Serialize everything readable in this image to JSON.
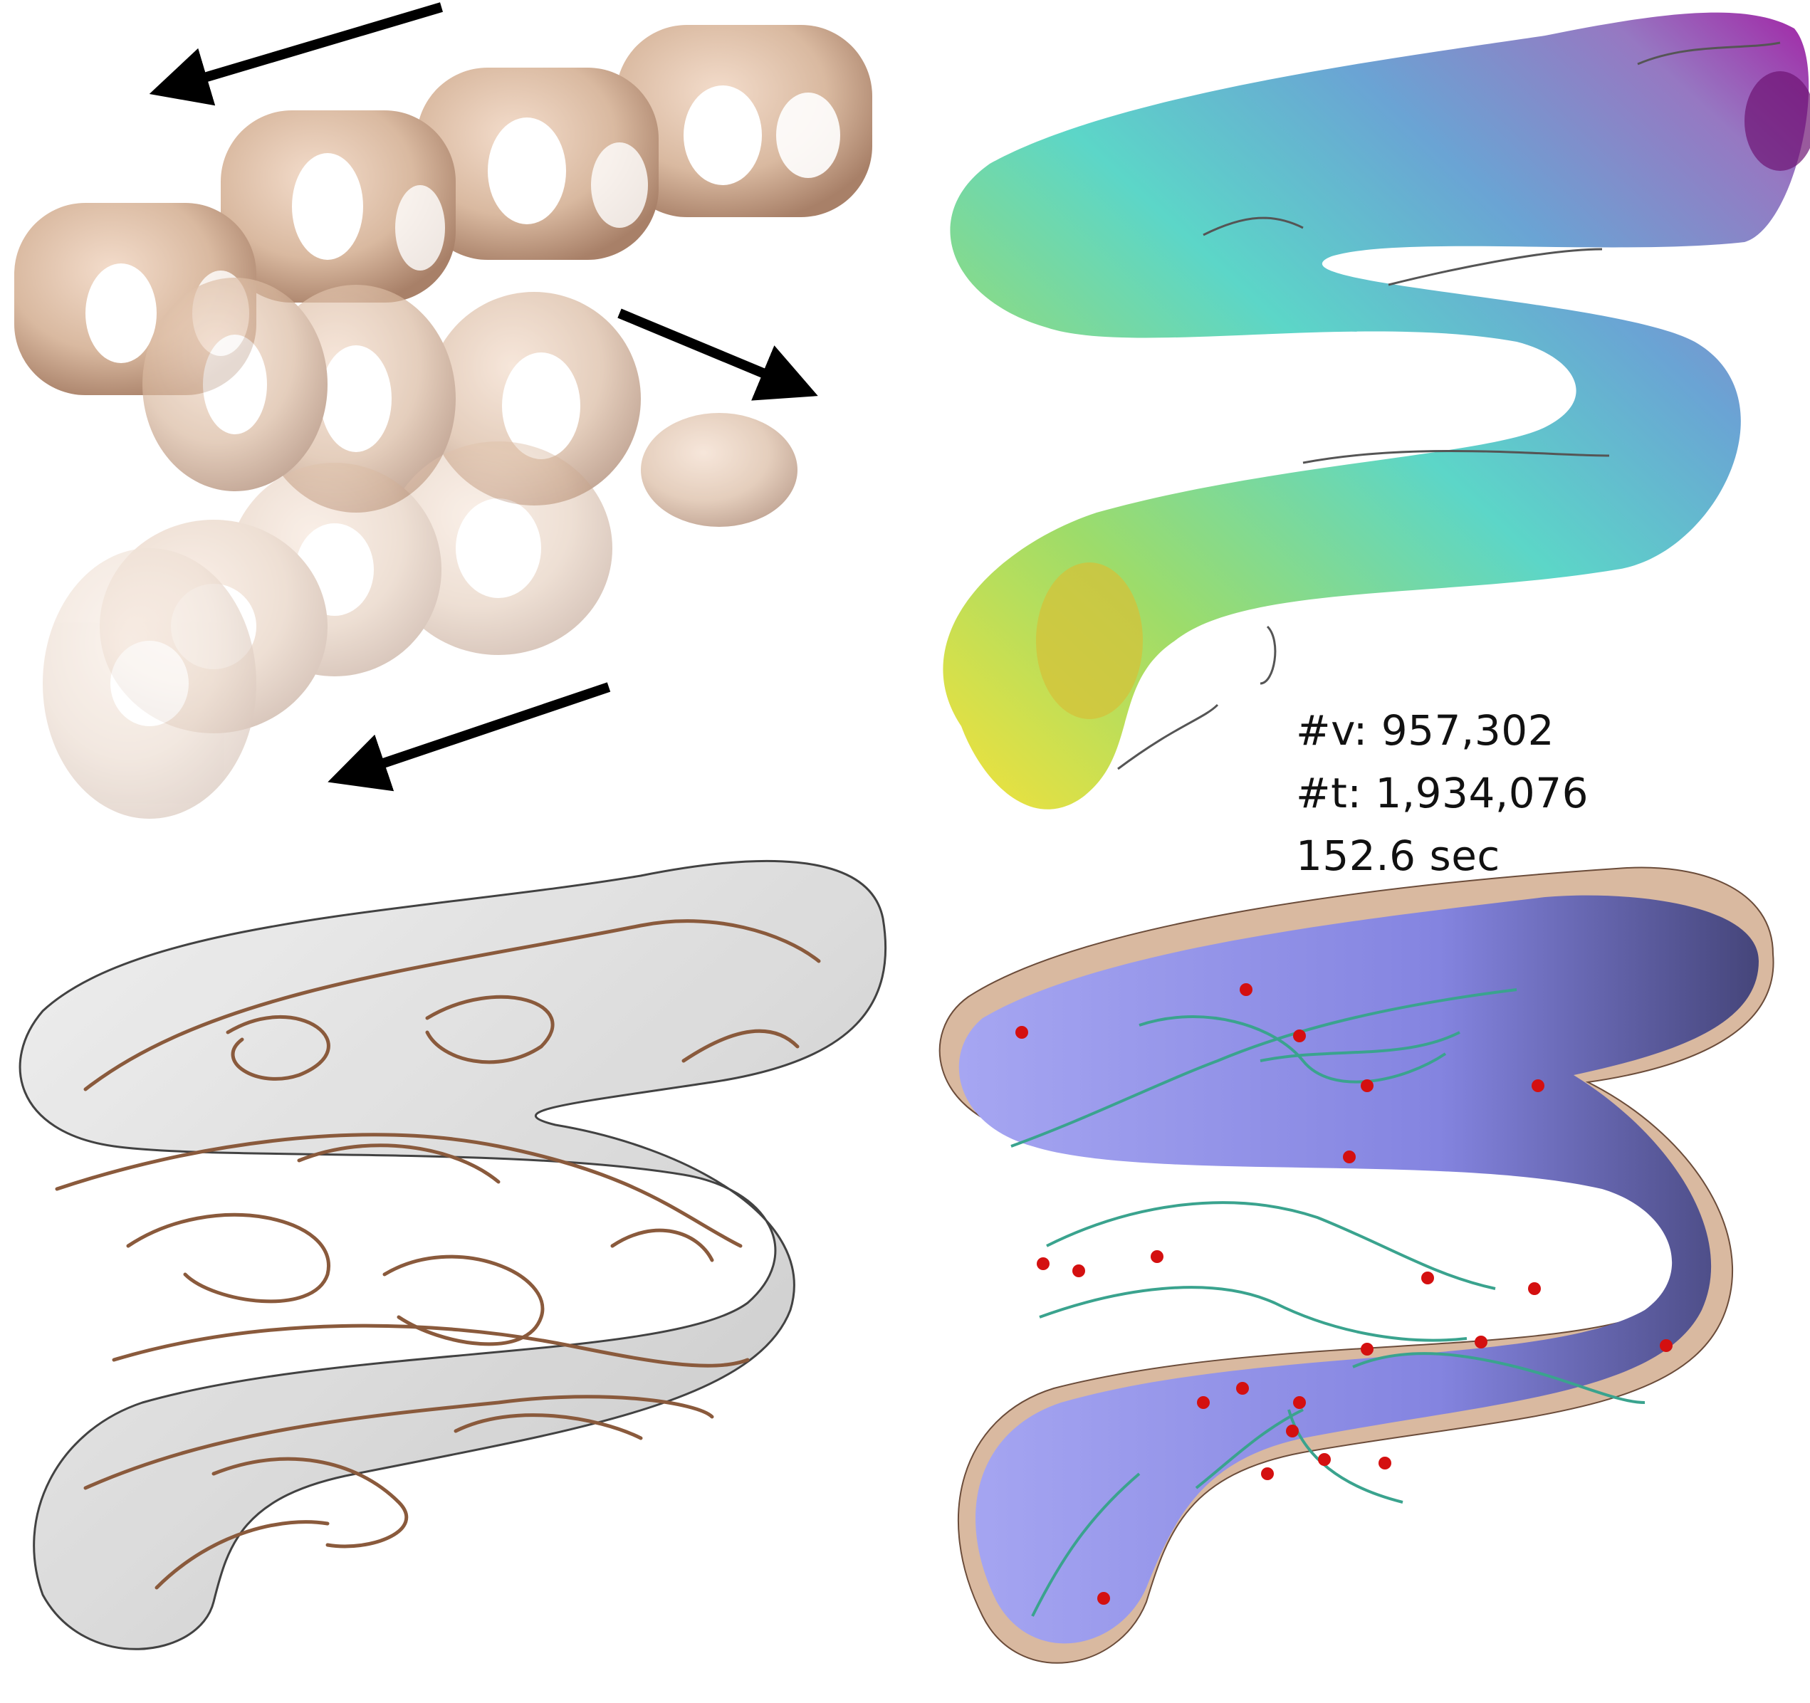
{
  "stats": {
    "vertices": "#v: 957,302",
    "triangles": "#t: 1,934,076",
    "time": "152.6 sec"
  },
  "colors": {
    "tan": "#d9b9a0",
    "tan_dark": "#b8927a",
    "glass": "#c9c9c9",
    "wire": "#8a5a3c",
    "purple_surface": "#8f8fe8",
    "curve_teal": "#3aa38e",
    "critical_point": "#d41010"
  },
  "icons": {
    "arrows": "arrow-icon"
  }
}
